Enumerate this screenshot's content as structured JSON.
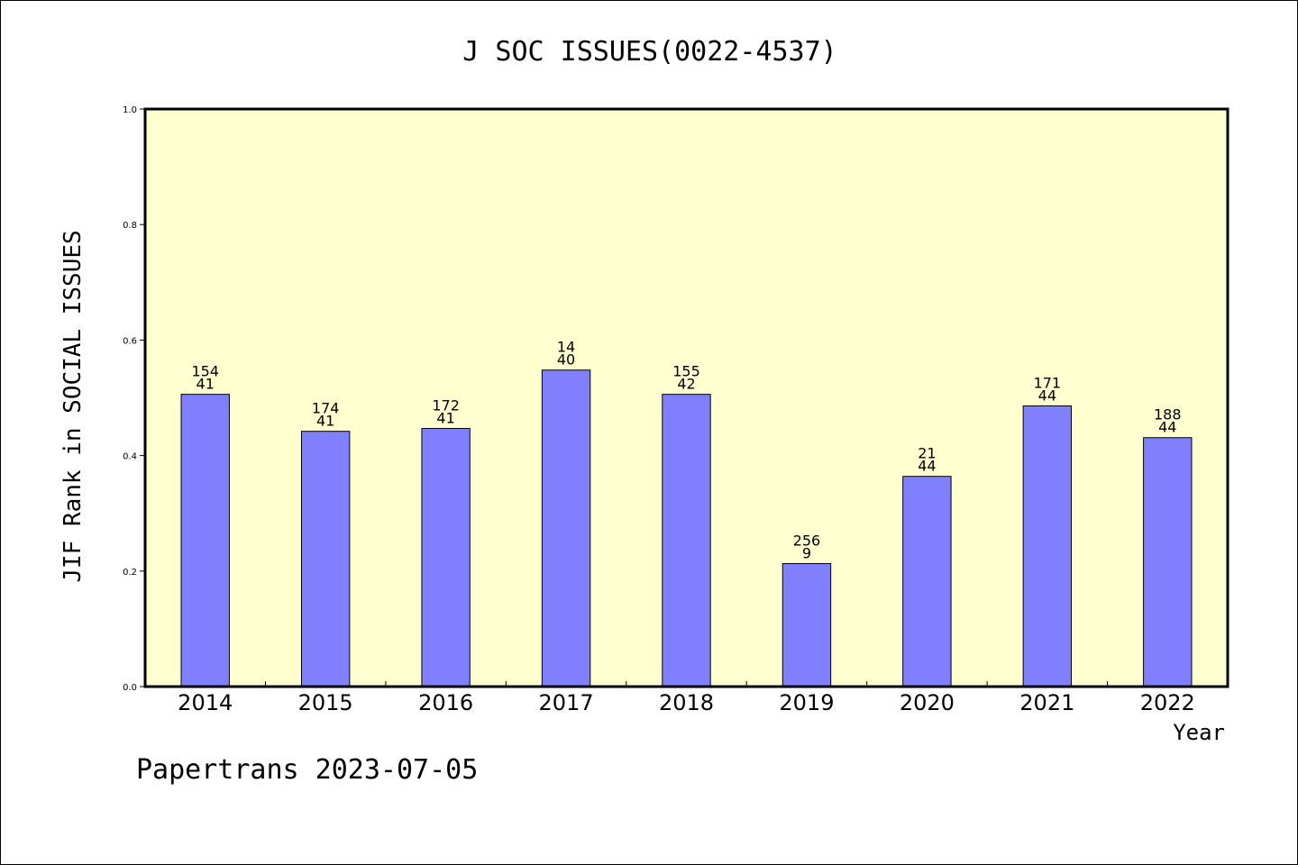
{
  "chart_data": {
    "type": "bar",
    "title": "J SOC ISSUES(0022-4537)",
    "xlabel": "Year",
    "ylabel": "JIF Rank in SOCIAL ISSUES",
    "ylim": [
      0,
      1.0
    ],
    "yticks": [
      "0.0",
      "0.2",
      "0.4",
      "0.6",
      "0.8",
      "1.0"
    ],
    "categories": [
      "2014",
      "2015",
      "2016",
      "2017",
      "2018",
      "2019",
      "2020",
      "2021",
      "2022"
    ],
    "values": [
      0.506,
      0.442,
      0.447,
      0.548,
      0.506,
      0.213,
      0.364,
      0.486,
      0.431
    ],
    "labels_top": [
      "154",
      "174",
      "172",
      "14",
      "155",
      "256",
      "21",
      "171",
      "188"
    ],
    "labels_bottom": [
      "41",
      "41",
      "41",
      "40",
      "42",
      "9",
      "44",
      "44",
      "44"
    ],
    "grid": false,
    "colors": {
      "plot_background": "#FFFFD0",
      "bar_fill": "#8080FF",
      "bar_stroke": "#000000",
      "axis": "#000000"
    }
  },
  "footer": {
    "text": "Papertrans 2023-07-05"
  }
}
